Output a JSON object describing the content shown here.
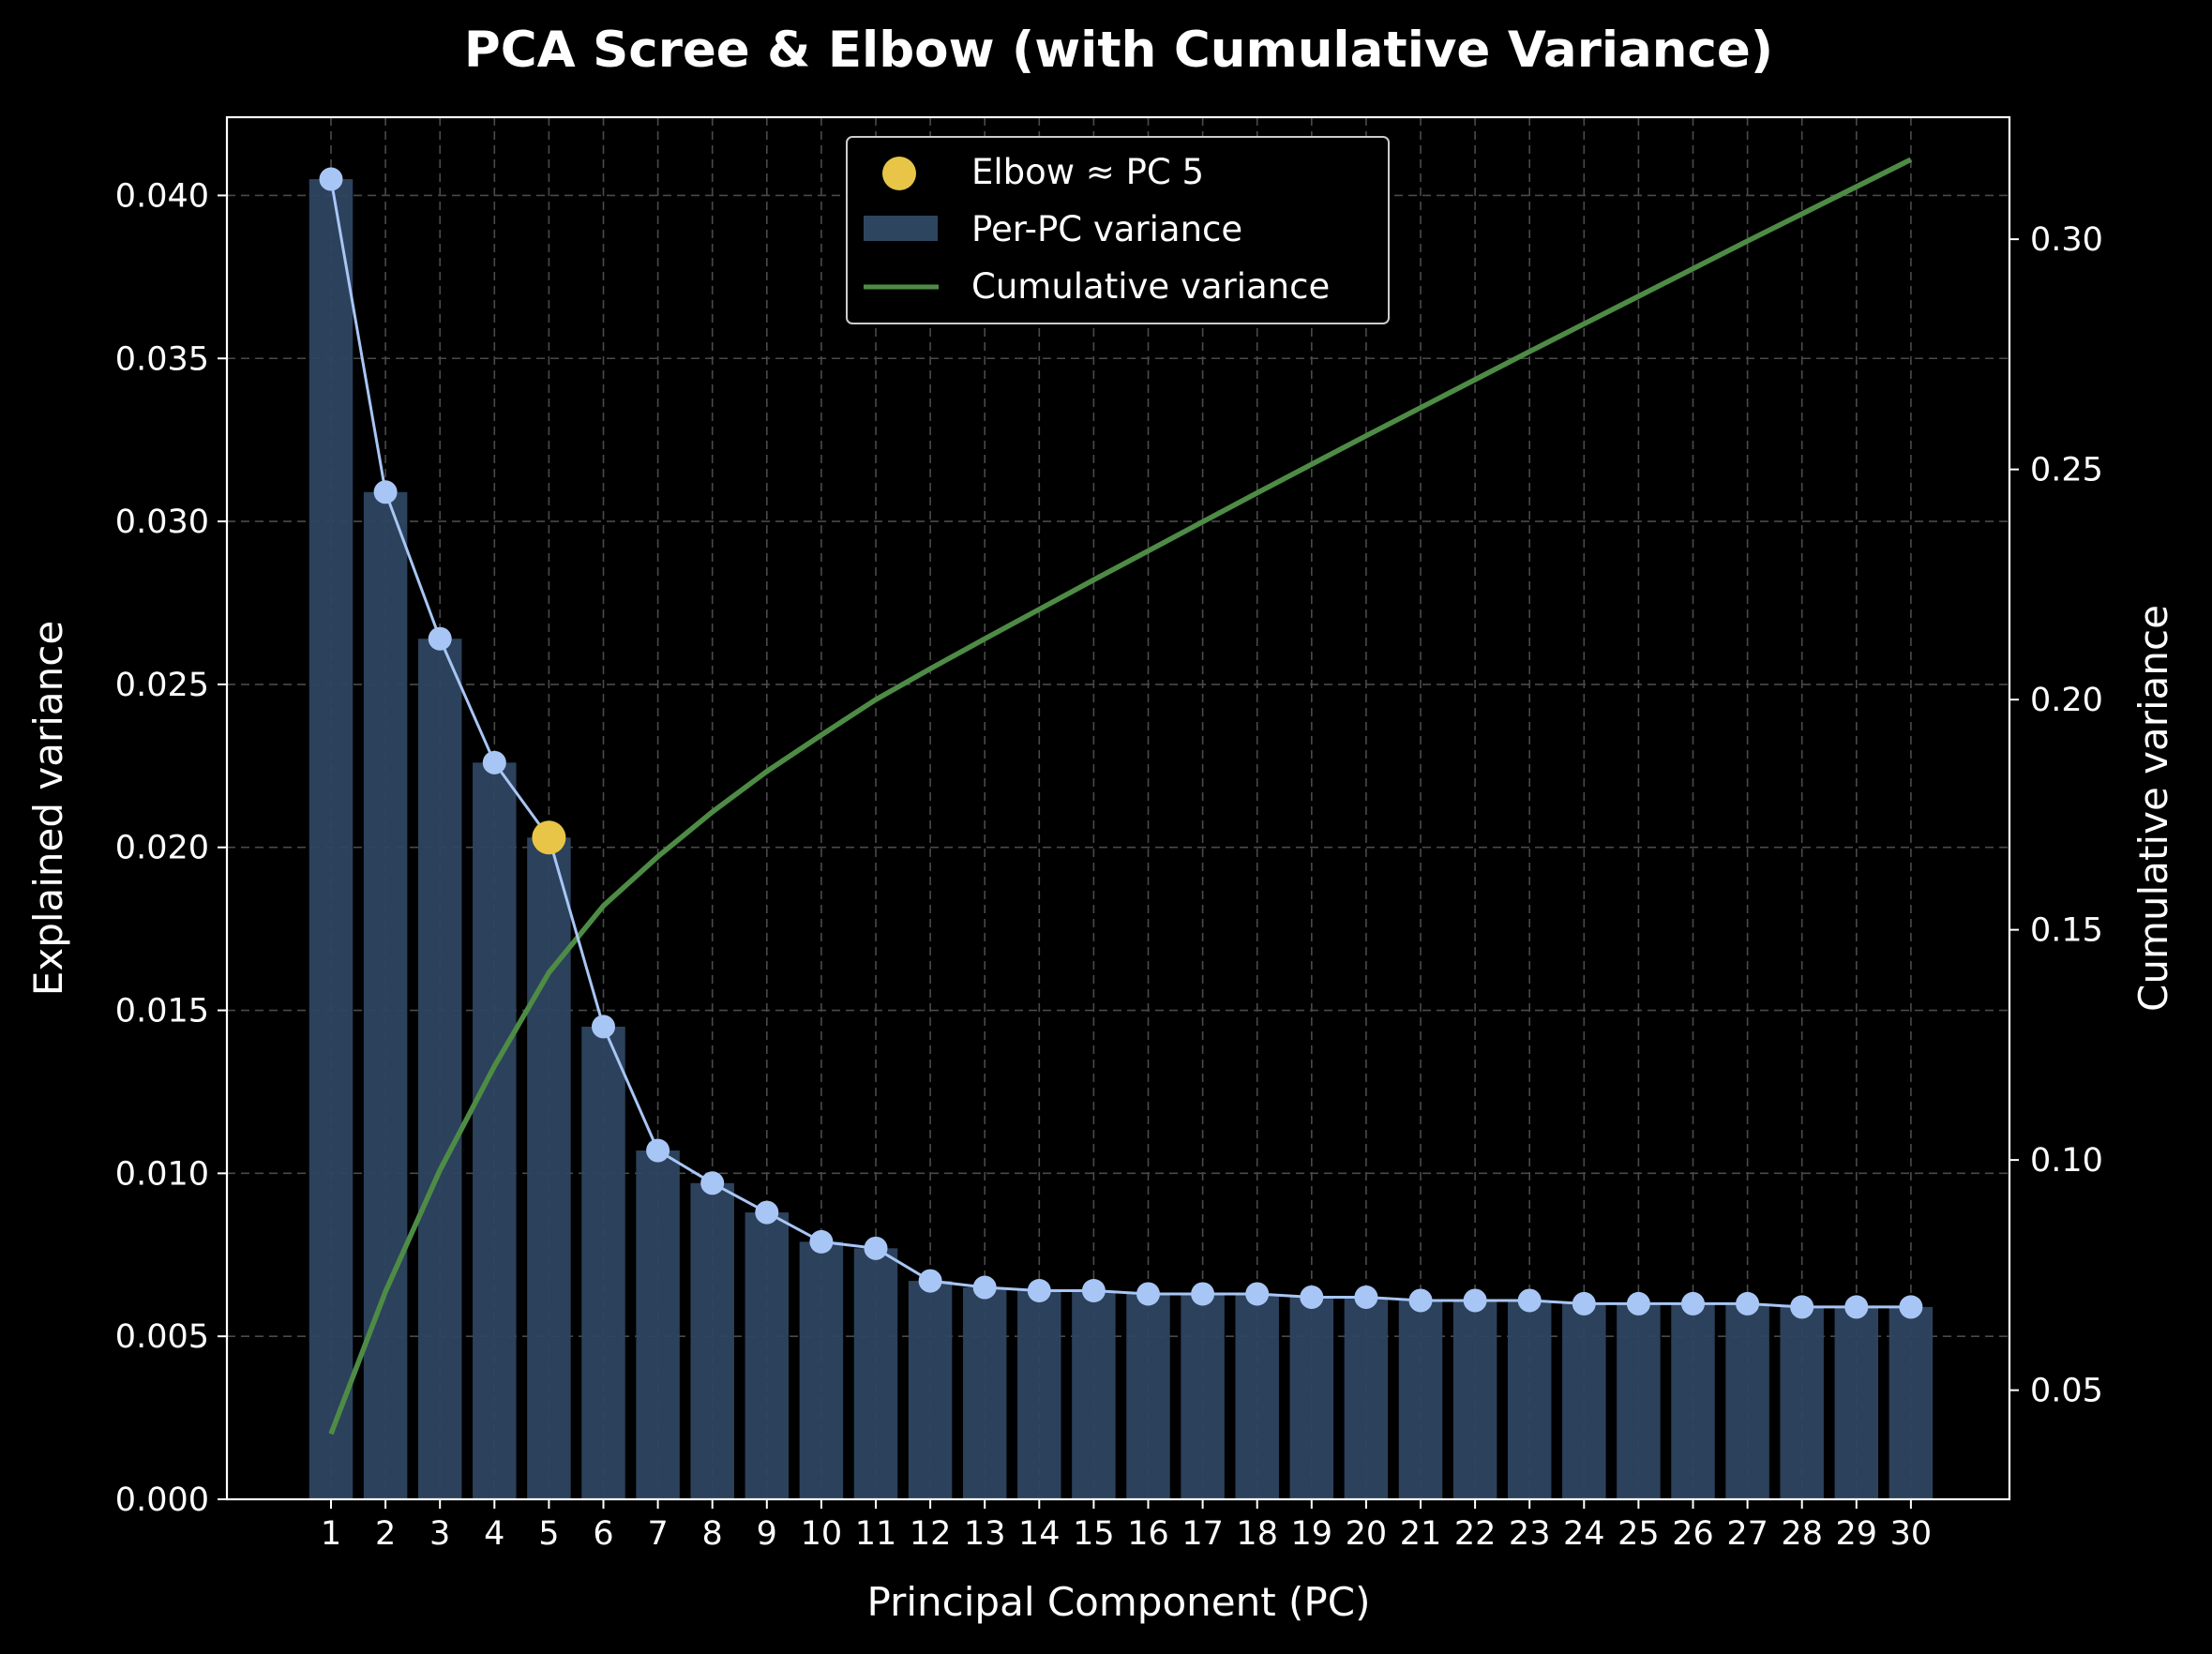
{
  "chart_data": {
    "type": "bar",
    "title": "PCA Scree & Elbow (with Cumulative Variance)",
    "xlabel": "Principal Component (PC)",
    "ylabel": "Explained variance",
    "y2label": "Cumulative variance",
    "categories": [
      "1",
      "2",
      "3",
      "4",
      "5",
      "6",
      "7",
      "8",
      "9",
      "10",
      "11",
      "12",
      "13",
      "14",
      "15",
      "16",
      "17",
      "18",
      "19",
      "20",
      "21",
      "22",
      "23",
      "24",
      "25",
      "26",
      "27",
      "28",
      "29",
      "30"
    ],
    "ylim": [
      0,
      0.0424
    ],
    "y2lim": [
      0.0263,
      0.3265
    ],
    "yticks": [
      "0.000",
      "0.005",
      "0.010",
      "0.015",
      "0.020",
      "0.025",
      "0.030",
      "0.035",
      "0.040"
    ],
    "y2ticks": [
      "0.05",
      "0.10",
      "0.15",
      "0.20",
      "0.25",
      "0.30"
    ],
    "grid": true,
    "legend_position": "top-center",
    "series": [
      {
        "name": "Per-PC variance",
        "type": "bar",
        "color": "#2e4560",
        "values": [
          0.0405,
          0.0309,
          0.0264,
          0.0226,
          0.0203,
          0.0145,
          0.0107,
          0.0097,
          0.0088,
          0.0079,
          0.0077,
          0.0067,
          0.0065,
          0.0064,
          0.0064,
          0.0063,
          0.0063,
          0.0063,
          0.0062,
          0.0062,
          0.0061,
          0.0061,
          0.0061,
          0.006,
          0.006,
          0.006,
          0.006,
          0.0059,
          0.0059,
          0.0059
        ]
      },
      {
        "name": "",
        "type": "line-markers",
        "color": "#a8c6f5",
        "values": [
          0.0405,
          0.0309,
          0.0264,
          0.0226,
          0.0203,
          0.0145,
          0.0107,
          0.0097,
          0.0088,
          0.0079,
          0.0077,
          0.0067,
          0.0065,
          0.0064,
          0.0064,
          0.0063,
          0.0063,
          0.0063,
          0.0062,
          0.0062,
          0.0061,
          0.0061,
          0.0061,
          0.006,
          0.006,
          0.006,
          0.006,
          0.0059,
          0.0059,
          0.0059
        ]
      },
      {
        "name": "Cumulative variance",
        "type": "line",
        "axis": "right",
        "color": "#4e8c46",
        "values": [
          0.0405,
          0.0714,
          0.0978,
          0.1204,
          0.1407,
          0.1552,
          0.1659,
          0.1756,
          0.1844,
          0.1923,
          0.2,
          0.2067,
          0.2132,
          0.2196,
          0.226,
          0.2323,
          0.2386,
          0.2449,
          0.2511,
          0.2573,
          0.2634,
          0.2695,
          0.2756,
          0.2816,
          0.2876,
          0.2936,
          0.2996,
          0.3055,
          0.3114,
          0.3173
        ]
      },
      {
        "name": "Elbow ≈ PC 5",
        "type": "marker",
        "color": "#e8c547",
        "x": "5",
        "value": 0.0203
      }
    ]
  }
}
